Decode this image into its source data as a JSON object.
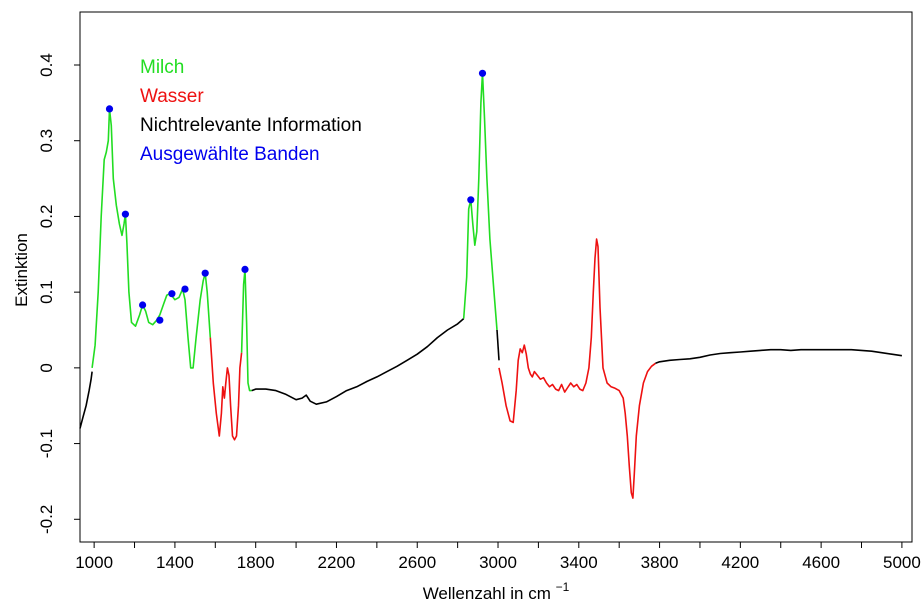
{
  "chart_data": {
    "type": "line",
    "xlabel": "Wellenzahl in cm",
    "xlabel_superscript": "−1",
    "ylabel": "Extinktion",
    "xlim": [
      930,
      5050
    ],
    "ylim": [
      -0.23,
      0.47
    ],
    "x_ticks": [
      1000,
      1400,
      1800,
      2200,
      2600,
      3000,
      3400,
      3800,
      4200,
      4600,
      5000
    ],
    "x_tick_labels": [
      "1000",
      "1400",
      "1800",
      "2200",
      "2600",
      "3000",
      "3400",
      "3800",
      "4200",
      "4600",
      "5000"
    ],
    "x_minor_ticks": [
      1200,
      1600,
      2000,
      2400,
      2800,
      3200,
      3600,
      4000,
      4400,
      4800
    ],
    "y_ticks": [
      -0.2,
      -0.1,
      0,
      0.1,
      0.2,
      0.3,
      0.4
    ],
    "y_tick_labels": [
      "-0.2",
      "-0.1",
      "0",
      "0.1",
      "0.2",
      "0.3",
      "0.4"
    ],
    "grid": false,
    "legend_position": "top-left",
    "legend": [
      {
        "label": "Milch",
        "color": "#22dd22"
      },
      {
        "label": "Wasser",
        "color": "#ee1111"
      },
      {
        "label": "Nichtrelevante Information",
        "color": "#000000"
      },
      {
        "label": "Ausgewählte Banden",
        "color": "#0000ee"
      }
    ],
    "colors": {
      "milch": "#22dd22",
      "wasser": "#ee1111",
      "other": "#000000",
      "bands": "#0000ee"
    },
    "series": [
      {
        "name": "Nichtrelevante Information",
        "segment": 1,
        "color": "#000000",
        "x": [
          930,
          945,
          960,
          975,
          985,
          990
        ],
        "y": [
          -0.08,
          -0.065,
          -0.05,
          -0.03,
          -0.015,
          -0.005
        ]
      },
      {
        "name": "Milch",
        "segment": 1,
        "color": "#22dd22",
        "x": [
          990,
          1005,
          1020,
          1035,
          1050,
          1060,
          1070,
          1076,
          1085,
          1095,
          1110,
          1125,
          1138,
          1148,
          1155,
          1162,
          1172,
          1185,
          1205,
          1225,
          1240,
          1255,
          1270,
          1290,
          1310,
          1325,
          1345,
          1360,
          1374,
          1385,
          1400,
          1420,
          1438,
          1450,
          1465,
          1478,
          1490,
          1505,
          1525,
          1540,
          1550,
          1560,
          1575
        ],
        "y": [
          0.0,
          0.03,
          0.1,
          0.2,
          0.275,
          0.285,
          0.3,
          0.342,
          0.32,
          0.25,
          0.215,
          0.19,
          0.175,
          0.19,
          0.203,
          0.165,
          0.1,
          0.06,
          0.055,
          0.07,
          0.083,
          0.075,
          0.06,
          0.057,
          0.063,
          0.07,
          0.085,
          0.096,
          0.098,
          0.095,
          0.09,
          0.093,
          0.104,
          0.09,
          0.04,
          0.0,
          0.0,
          0.04,
          0.09,
          0.115,
          0.125,
          0.1,
          0.04
        ]
      },
      {
        "name": "Wasser",
        "segment": 1,
        "color": "#ee1111",
        "x": [
          1575,
          1590,
          1605,
          1620,
          1630,
          1637,
          1645,
          1652,
          1660,
          1668,
          1676,
          1685,
          1695,
          1705,
          1715,
          1722,
          1730
        ],
        "y": [
          0.04,
          -0.02,
          -0.06,
          -0.09,
          -0.06,
          -0.025,
          -0.04,
          -0.02,
          0.0,
          -0.01,
          -0.05,
          -0.09,
          -0.095,
          -0.09,
          -0.05,
          0.0,
          0.02
        ]
      },
      {
        "name": "Milch",
        "segment": 2,
        "color": "#22dd22",
        "x": [
          1730,
          1740,
          1747,
          1755,
          1762,
          1770,
          1780
        ],
        "y": [
          0.02,
          0.11,
          0.13,
          0.06,
          -0.02,
          -0.03,
          -0.03
        ]
      },
      {
        "name": "Nichtrelevante Information",
        "segment": 2,
        "color": "#000000",
        "x": [
          1780,
          1800,
          1850,
          1900,
          1950,
          2000,
          2030,
          2050,
          2070,
          2100,
          2150,
          2200,
          2250,
          2300,
          2350,
          2400,
          2450,
          2500,
          2550,
          2600,
          2650,
          2700,
          2750,
          2800,
          2830
        ],
        "y": [
          -0.03,
          -0.028,
          -0.028,
          -0.03,
          -0.035,
          -0.042,
          -0.04,
          -0.036,
          -0.044,
          -0.048,
          -0.045,
          -0.038,
          -0.03,
          -0.025,
          -0.018,
          -0.012,
          -0.005,
          0.002,
          0.01,
          0.018,
          0.028,
          0.04,
          0.05,
          0.058,
          0.065
        ]
      },
      {
        "name": "Milch",
        "segment": 3,
        "color": "#22dd22",
        "x": [
          2830,
          2845,
          2855,
          2865,
          2875,
          2885,
          2895,
          2905,
          2915,
          2923,
          2933,
          2945,
          2960,
          2980,
          2995
        ],
        "y": [
          0.065,
          0.12,
          0.21,
          0.222,
          0.19,
          0.162,
          0.18,
          0.25,
          0.35,
          0.39,
          0.33,
          0.25,
          0.17,
          0.1,
          0.05
        ]
      },
      {
        "name": "Nichtrelevante Information",
        "segment": 3,
        "color": "#000000",
        "x": [
          2995,
          3005
        ],
        "y": [
          0.05,
          0.01
        ]
      },
      {
        "name": "Wasser",
        "segment": 2,
        "color": "#ee1111",
        "x": [
          3005,
          3020,
          3040,
          3060,
          3075,
          3090,
          3100,
          3110,
          3120,
          3130,
          3140,
          3150,
          3160,
          3170,
          3180,
          3195,
          3210,
          3225,
          3240,
          3255,
          3270,
          3285,
          3300,
          3315,
          3330,
          3345,
          3360,
          3375,
          3390,
          3405,
          3420,
          3435,
          3450,
          3462,
          3472,
          3480,
          3488,
          3495,
          3505,
          3520,
          3540,
          3560,
          3580,
          3600,
          3620,
          3630,
          3640,
          3650,
          3660,
          3668,
          3675,
          3685,
          3700,
          3720,
          3740,
          3760,
          3780
        ],
        "y": [
          0.0,
          -0.02,
          -0.05,
          -0.07,
          -0.072,
          -0.03,
          0.01,
          0.025,
          0.02,
          0.03,
          0.018,
          0.0,
          -0.008,
          -0.012,
          -0.005,
          -0.01,
          -0.015,
          -0.013,
          -0.02,
          -0.025,
          -0.022,
          -0.028,
          -0.03,
          -0.022,
          -0.032,
          -0.026,
          -0.02,
          -0.025,
          -0.022,
          -0.028,
          -0.03,
          -0.02,
          0.0,
          0.04,
          0.1,
          0.145,
          0.17,
          0.16,
          0.08,
          0.0,
          -0.02,
          -0.025,
          -0.027,
          -0.03,
          -0.04,
          -0.06,
          -0.09,
          -0.13,
          -0.165,
          -0.172,
          -0.14,
          -0.09,
          -0.05,
          -0.02,
          -0.005,
          0.002,
          0.006
        ]
      },
      {
        "name": "Nichtrelevante Information",
        "segment": 4,
        "color": "#000000",
        "x": [
          3780,
          3800,
          3850,
          3900,
          3950,
          4000,
          4050,
          4100,
          4150,
          4200,
          4250,
          4300,
          4350,
          4400,
          4450,
          4500,
          4550,
          4600,
          4650,
          4700,
          4750,
          4800,
          4850,
          4900,
          4950,
          5000
        ],
        "y": [
          0.006,
          0.008,
          0.01,
          0.011,
          0.012,
          0.014,
          0.017,
          0.019,
          0.02,
          0.021,
          0.022,
          0.023,
          0.024,
          0.024,
          0.023,
          0.024,
          0.024,
          0.024,
          0.024,
          0.024,
          0.024,
          0.023,
          0.022,
          0.02,
          0.018,
          0.016
        ]
      }
    ],
    "selected_bands": {
      "name": "Ausgewählte Banden",
      "x": [
        1076,
        1155,
        1240,
        1325,
        1385,
        1450,
        1550,
        1747,
        2865,
        2923
      ],
      "y": [
        0.342,
        0.203,
        0.083,
        0.063,
        0.098,
        0.104,
        0.125,
        0.13,
        0.222,
        0.389
      ]
    }
  }
}
